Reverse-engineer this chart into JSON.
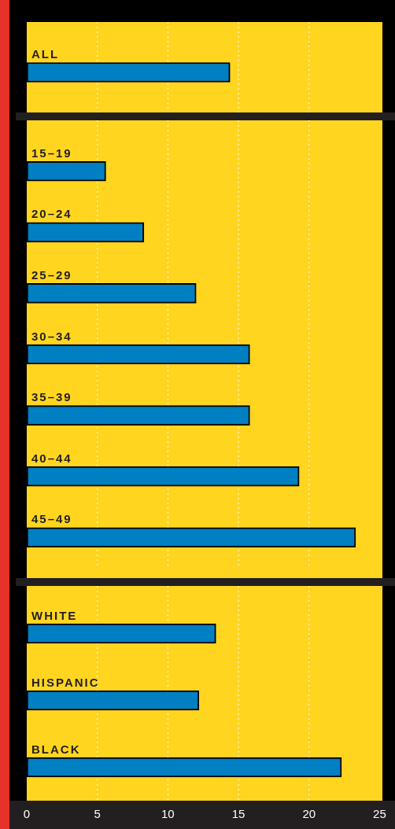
{
  "chart_data": [
    {
      "type": "bar",
      "orientation": "horizontal",
      "categories": [
        "ALL"
      ],
      "values": [
        14.4
      ],
      "color": "#0080c3",
      "xlim": [
        0,
        25.2
      ],
      "xticks": [
        0,
        5,
        10,
        15,
        20,
        25
      ],
      "grid": "x",
      "tick_labels": false
    },
    {
      "type": "bar",
      "orientation": "horizontal",
      "categories": [
        "15–19",
        "20–24",
        "25–29",
        "30–34",
        "35–39",
        "40–44",
        "45–49"
      ],
      "values": [
        5.6,
        8.3,
        12.0,
        15.8,
        15.8,
        19.3,
        23.3
      ],
      "color": "#0080c3",
      "xlim": [
        0,
        25.2
      ],
      "xticks": [
        0,
        5,
        10,
        15,
        20,
        25
      ],
      "grid": "x",
      "tick_labels": false
    },
    {
      "type": "bar",
      "orientation": "horizontal",
      "categories": [
        "WHITE",
        "HISPANIC",
        "BLACK"
      ],
      "values": [
        13.4,
        12.2,
        22.3
      ],
      "color": "#0080c3",
      "xlim": [
        0,
        25.2
      ],
      "xticks": [
        0,
        5,
        10,
        15,
        20,
        25
      ],
      "grid": "x",
      "tick_labels": "x"
    }
  ]
}
